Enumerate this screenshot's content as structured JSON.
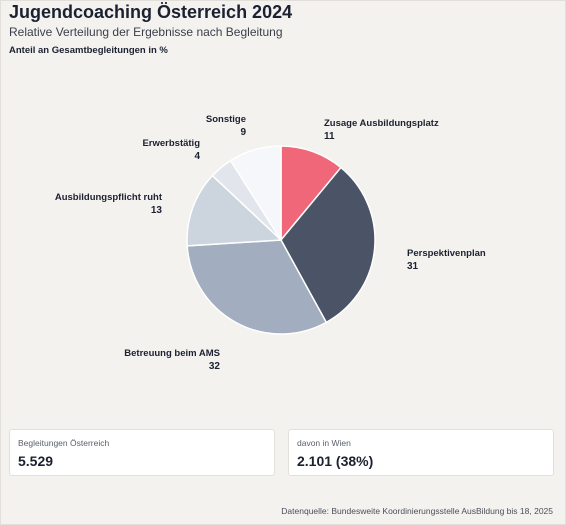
{
  "header": {
    "title": "Jugendcoaching Österreich 2024",
    "subtitle": "Relative Verteilung der Ergebnisse nach Begleitung",
    "unit_label": "Anteil an Gesamtbegleitungen in %"
  },
  "chart_data": {
    "type": "pie",
    "title": "Jugendcoaching Österreich 2024",
    "subtitle": "Relative Verteilung der Ergebnisse nach Begleitung",
    "unit": "Anteil an Gesamtbegleitungen in %",
    "slices": [
      {
        "label": "Zusage Ausbildungsplatz",
        "value": 11,
        "color": "#f0677a"
      },
      {
        "label": "Perspektivenplan",
        "value": 31,
        "color": "#4a5466"
      },
      {
        "label": "Betreuung beim AMS",
        "value": 32,
        "color": "#a2adbf"
      },
      {
        "label": "Ausbildungspflicht ruht",
        "value": 13,
        "color": "#ccd4de"
      },
      {
        "label": "Erwerbstätig",
        "value": 4,
        "color": "#e2e6ec"
      },
      {
        "label": "Sonstige",
        "value": 9,
        "color": "#f5f7fa"
      }
    ]
  },
  "cards": [
    {
      "label": "Begleitungen Österreich",
      "value": "5.529"
    },
    {
      "label": "davon in Wien",
      "value": "2.101 (38%)"
    }
  ],
  "footer": {
    "source": "Datenquelle: Bundesweite Koordinierungsstelle AusBildung bis 18, 2025"
  }
}
